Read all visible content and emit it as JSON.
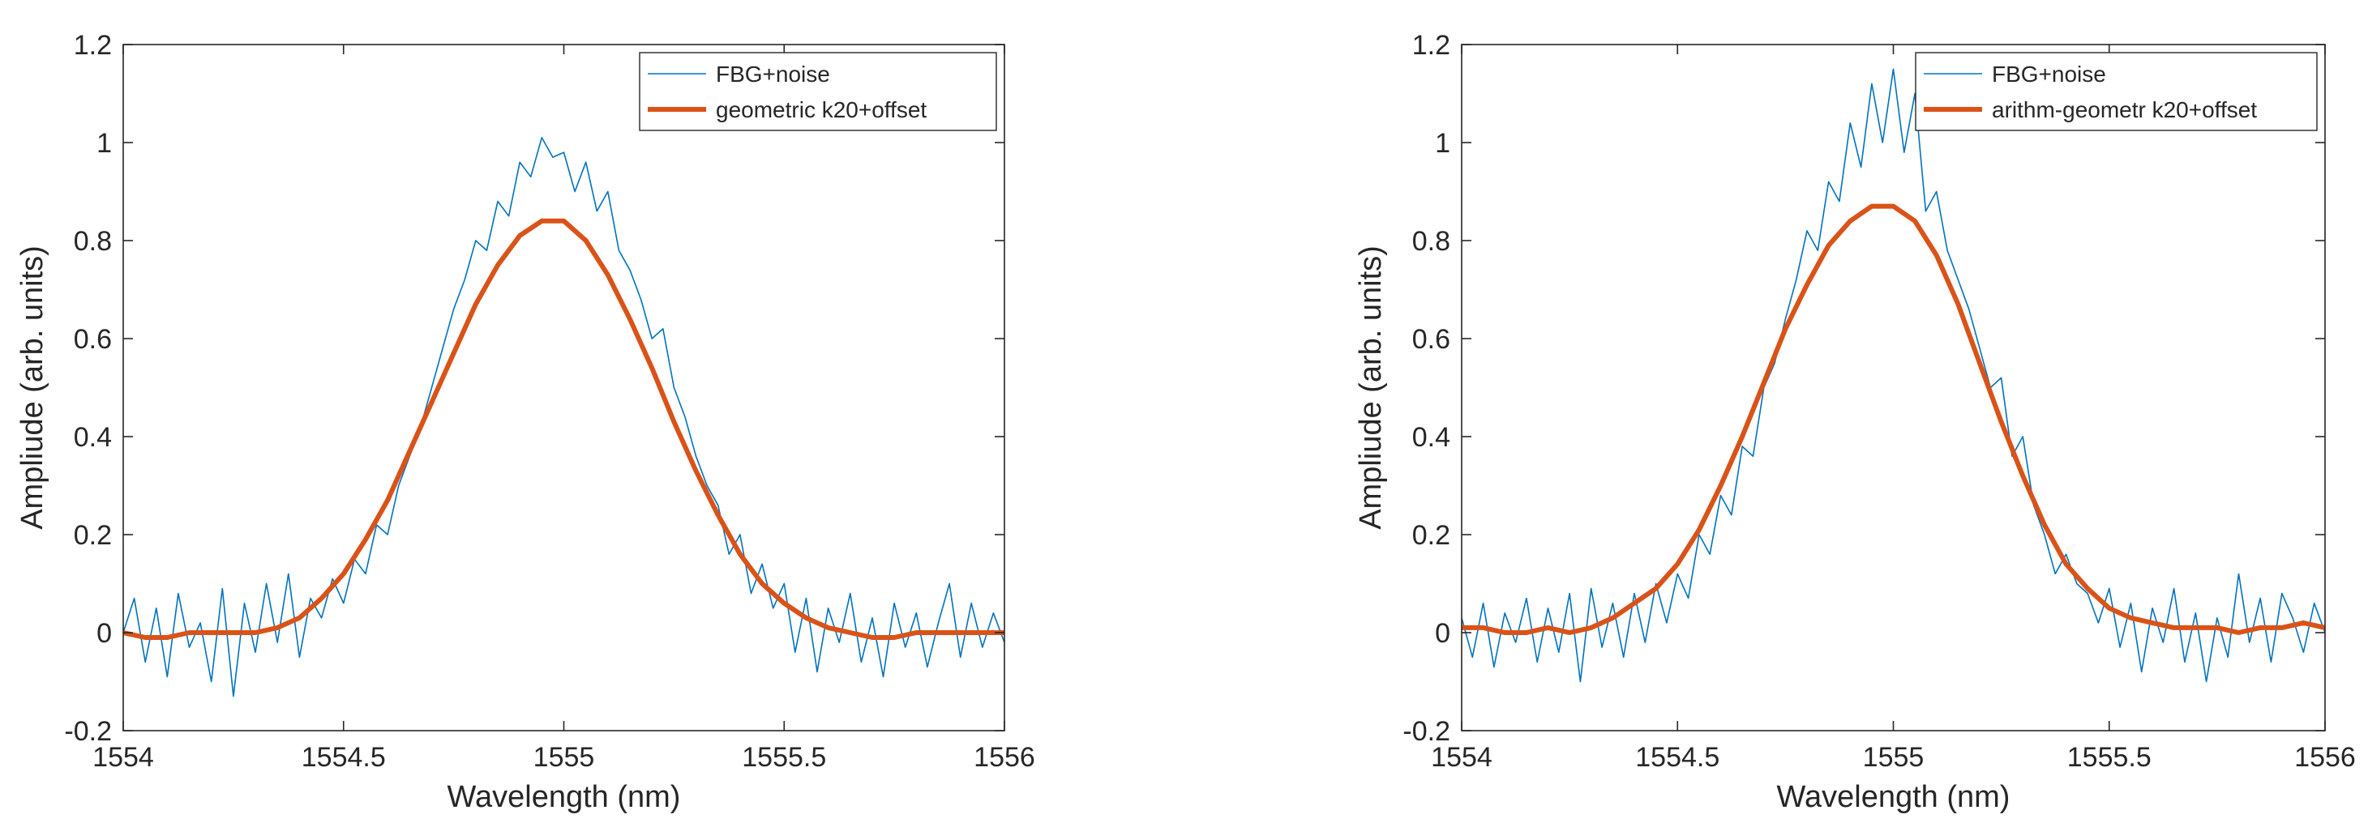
{
  "chart_data": [
    {
      "type": "line",
      "title": "",
      "xlabel": "Wavelength (nm)",
      "ylabel": "Ampliude (arb. units)",
      "xlim": [
        1554,
        1556
      ],
      "ylim": [
        -0.2,
        1.2
      ],
      "xticks": [
        1554,
        1554.5,
        1555,
        1555.5,
        1556
      ],
      "xtick_labels": [
        "1554",
        "1554.5",
        "1555",
        "1555.5",
        "1556"
      ],
      "yticks": [
        -0.2,
        0,
        0.2,
        0.4,
        0.6,
        0.8,
        1,
        1.2
      ],
      "ytick_labels": [
        "-0.2",
        "0",
        "0.2",
        "0.4",
        "0.6",
        "0.8",
        "1",
        "1.2"
      ],
      "grid": false,
      "legend_position": "top-right",
      "series": [
        {
          "name": "FBG+noise",
          "color": "#0072BD",
          "style": "thin",
          "x": [
            1554.0,
            1554.025,
            1554.05,
            1554.075,
            1554.1,
            1554.125,
            1554.15,
            1554.175,
            1554.2,
            1554.225,
            1554.25,
            1554.275,
            1554.3,
            1554.325,
            1554.35,
            1554.375,
            1554.4,
            1554.425,
            1554.45,
            1554.475,
            1554.5,
            1554.525,
            1554.55,
            1554.575,
            1554.6,
            1554.625,
            1554.65,
            1554.675,
            1554.7,
            1554.725,
            1554.75,
            1554.775,
            1554.8,
            1554.825,
            1554.85,
            1554.875,
            1554.9,
            1554.925,
            1554.95,
            1554.975,
            1555.0,
            1555.025,
            1555.05,
            1555.075,
            1555.1,
            1555.125,
            1555.15,
            1555.175,
            1555.2,
            1555.225,
            1555.25,
            1555.275,
            1555.3,
            1555.325,
            1555.35,
            1555.375,
            1555.4,
            1555.425,
            1555.45,
            1555.475,
            1555.5,
            1555.525,
            1555.55,
            1555.575,
            1555.6,
            1555.625,
            1555.65,
            1555.675,
            1555.7,
            1555.725,
            1555.75,
            1555.775,
            1555.8,
            1555.825,
            1555.85,
            1555.875,
            1555.9,
            1555.925,
            1555.95,
            1555.975,
            1556.0
          ],
          "y": [
            0.0,
            0.07,
            -0.06,
            0.05,
            -0.09,
            0.08,
            -0.03,
            0.02,
            -0.1,
            0.09,
            -0.13,
            0.06,
            -0.04,
            0.1,
            -0.02,
            0.12,
            -0.05,
            0.07,
            0.03,
            0.11,
            0.06,
            0.15,
            0.12,
            0.22,
            0.2,
            0.3,
            0.36,
            0.42,
            0.5,
            0.58,
            0.66,
            0.72,
            0.8,
            0.78,
            0.88,
            0.85,
            0.96,
            0.93,
            1.01,
            0.97,
            0.98,
            0.9,
            0.96,
            0.86,
            0.9,
            0.78,
            0.74,
            0.68,
            0.6,
            0.62,
            0.5,
            0.44,
            0.36,
            0.3,
            0.26,
            0.16,
            0.2,
            0.08,
            0.14,
            0.05,
            0.1,
            -0.04,
            0.07,
            -0.08,
            0.05,
            -0.02,
            0.08,
            -0.06,
            0.03,
            -0.09,
            0.06,
            -0.03,
            0.04,
            -0.07,
            0.02,
            0.1,
            -0.05,
            0.06,
            -0.03,
            0.04,
            -0.02
          ]
        },
        {
          "name": "geometric k20+offset",
          "color": "#D95319",
          "style": "thick",
          "x": [
            1554.0,
            1554.05,
            1554.1,
            1554.15,
            1554.2,
            1554.25,
            1554.3,
            1554.35,
            1554.4,
            1554.45,
            1554.5,
            1554.55,
            1554.6,
            1554.65,
            1554.7,
            1554.75,
            1554.8,
            1554.85,
            1554.9,
            1554.95,
            1555.0,
            1555.05,
            1555.1,
            1555.15,
            1555.2,
            1555.25,
            1555.3,
            1555.35,
            1555.4,
            1555.45,
            1555.5,
            1555.55,
            1555.6,
            1555.65,
            1555.7,
            1555.75,
            1555.8,
            1555.85,
            1555.9,
            1555.95,
            1556.0
          ],
          "y": [
            0.0,
            -0.01,
            -0.01,
            0.0,
            0.0,
            0.0,
            0.0,
            0.01,
            0.03,
            0.07,
            0.12,
            0.19,
            0.27,
            0.37,
            0.47,
            0.57,
            0.67,
            0.75,
            0.81,
            0.84,
            0.84,
            0.8,
            0.73,
            0.64,
            0.54,
            0.43,
            0.33,
            0.24,
            0.16,
            0.1,
            0.06,
            0.03,
            0.01,
            0.0,
            -0.01,
            -0.01,
            0.0,
            0.0,
            0.0,
            0.0,
            0.0
          ]
        }
      ]
    },
    {
      "type": "line",
      "title": "",
      "xlabel": "Wavelength (nm)",
      "ylabel": "Ampliude (arb. units)",
      "xlim": [
        1554,
        1556
      ],
      "ylim": [
        -0.2,
        1.2
      ],
      "xticks": [
        1554,
        1554.5,
        1555,
        1555.5,
        1556
      ],
      "xtick_labels": [
        "1554",
        "1554.5",
        "1555",
        "1555.5",
        "1556"
      ],
      "yticks": [
        -0.2,
        0,
        0.2,
        0.4,
        0.6,
        0.8,
        1,
        1.2
      ],
      "ytick_labels": [
        "-0.2",
        "0",
        "0.2",
        "0.4",
        "0.6",
        "0.8",
        "1",
        "1.2"
      ],
      "grid": false,
      "legend_position": "top-right",
      "series": [
        {
          "name": "FBG+noise",
          "color": "#0072BD",
          "style": "thin",
          "x": [
            1554.0,
            1554.025,
            1554.05,
            1554.075,
            1554.1,
            1554.125,
            1554.15,
            1554.175,
            1554.2,
            1554.225,
            1554.25,
            1554.275,
            1554.3,
            1554.325,
            1554.35,
            1554.375,
            1554.4,
            1554.425,
            1554.45,
            1554.475,
            1554.5,
            1554.525,
            1554.55,
            1554.575,
            1554.6,
            1554.625,
            1554.65,
            1554.675,
            1554.7,
            1554.725,
            1554.75,
            1554.775,
            1554.8,
            1554.825,
            1554.85,
            1554.875,
            1554.9,
            1554.925,
            1554.95,
            1554.975,
            1555.0,
            1555.025,
            1555.05,
            1555.075,
            1555.1,
            1555.125,
            1555.15,
            1555.175,
            1555.2,
            1555.225,
            1555.25,
            1555.275,
            1555.3,
            1555.325,
            1555.35,
            1555.375,
            1555.4,
            1555.425,
            1555.45,
            1555.475,
            1555.5,
            1555.525,
            1555.55,
            1555.575,
            1555.6,
            1555.625,
            1555.65,
            1555.675,
            1555.7,
            1555.725,
            1555.75,
            1555.775,
            1555.8,
            1555.825,
            1555.85,
            1555.875,
            1555.9,
            1555.925,
            1555.95,
            1555.975,
            1556.0
          ],
          "y": [
            0.03,
            -0.05,
            0.06,
            -0.07,
            0.04,
            -0.02,
            0.07,
            -0.06,
            0.05,
            -0.04,
            0.08,
            -0.1,
            0.09,
            -0.03,
            0.06,
            -0.05,
            0.08,
            -0.02,
            0.1,
            0.02,
            0.12,
            0.07,
            0.2,
            0.16,
            0.28,
            0.24,
            0.38,
            0.36,
            0.5,
            0.55,
            0.64,
            0.72,
            0.82,
            0.78,
            0.92,
            0.88,
            1.04,
            0.95,
            1.12,
            1.0,
            1.15,
            0.98,
            1.1,
            0.86,
            0.9,
            0.78,
            0.72,
            0.66,
            0.58,
            0.5,
            0.52,
            0.36,
            0.4,
            0.26,
            0.2,
            0.12,
            0.16,
            0.1,
            0.08,
            0.02,
            0.09,
            -0.03,
            0.06,
            -0.08,
            0.05,
            -0.02,
            0.09,
            -0.06,
            0.04,
            -0.1,
            0.03,
            -0.05,
            0.12,
            -0.02,
            0.07,
            -0.06,
            0.08,
            0.03,
            -0.04,
            0.06,
            0.0
          ]
        },
        {
          "name": "arithm-geometr k20+offset",
          "color": "#D95319",
          "style": "thick",
          "x": [
            1554.0,
            1554.05,
            1554.1,
            1554.15,
            1554.2,
            1554.25,
            1554.3,
            1554.35,
            1554.4,
            1554.45,
            1554.5,
            1554.55,
            1554.6,
            1554.65,
            1554.7,
            1554.75,
            1554.8,
            1554.85,
            1554.9,
            1554.95,
            1555.0,
            1555.05,
            1555.1,
            1555.15,
            1555.2,
            1555.25,
            1555.3,
            1555.35,
            1555.4,
            1555.45,
            1555.5,
            1555.55,
            1555.6,
            1555.65,
            1555.7,
            1555.75,
            1555.8,
            1555.85,
            1555.9,
            1555.95,
            1556.0
          ],
          "y": [
            0.01,
            0.01,
            0.0,
            0.0,
            0.01,
            0.0,
            0.01,
            0.03,
            0.06,
            0.09,
            0.14,
            0.21,
            0.3,
            0.4,
            0.51,
            0.62,
            0.71,
            0.79,
            0.84,
            0.87,
            0.87,
            0.84,
            0.77,
            0.67,
            0.55,
            0.43,
            0.32,
            0.22,
            0.14,
            0.09,
            0.05,
            0.03,
            0.02,
            0.01,
            0.01,
            0.01,
            0.0,
            0.01,
            0.01,
            0.02,
            0.01
          ]
        }
      ]
    }
  ]
}
